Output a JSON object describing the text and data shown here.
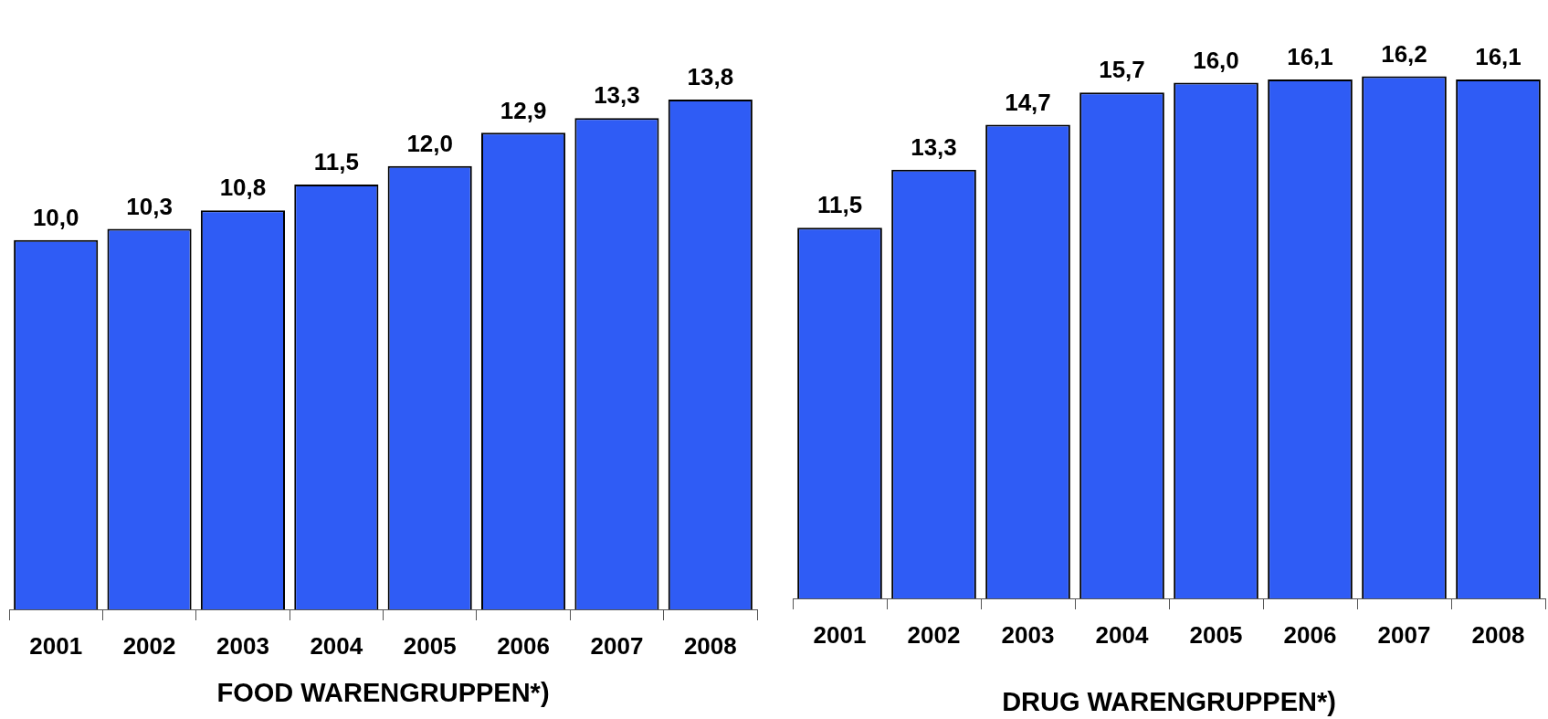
{
  "chart_data": [
    {
      "type": "bar",
      "xlabel": "FOOD WARENGRUPPEN*)",
      "categories": [
        "2001",
        "2002",
        "2003",
        "2004",
        "2005",
        "2006",
        "2007",
        "2008"
      ],
      "values": [
        10.0,
        10.3,
        10.8,
        11.5,
        12.0,
        12.9,
        13.3,
        13.8
      ],
      "value_labels": [
        "10,0",
        "10,3",
        "10,8",
        "11,5",
        "12,0",
        "12,9",
        "13,3",
        "13,8"
      ],
      "color": "#2f5cf5"
    },
    {
      "type": "bar",
      "xlabel": "DRUG WARENGRUPPEN*)",
      "categories": [
        "2001",
        "2002",
        "2003",
        "2004",
        "2005",
        "2006",
        "2007",
        "2008"
      ],
      "values": [
        11.5,
        13.3,
        14.7,
        15.7,
        16.0,
        16.1,
        16.2,
        16.1
      ],
      "value_labels": [
        "11,5",
        "13,3",
        "14,7",
        "15,7",
        "16,0",
        "16,1",
        "16,2",
        "16,1"
      ],
      "color": "#2f5cf5"
    }
  ]
}
